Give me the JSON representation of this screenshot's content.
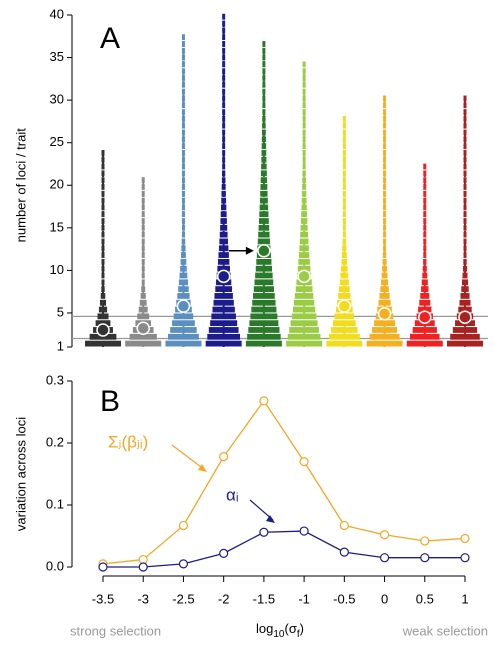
{
  "chart_data": [
    {
      "type": "violin",
      "panel_label": "A",
      "ylabel": "number of loci / trait",
      "categories": [
        -3.5,
        -3,
        -2.5,
        -2,
        -1.5,
        -1,
        -0.5,
        0,
        0.5,
        1
      ],
      "means": [
        3.0,
        3.2,
        5.8,
        9.3,
        12.3,
        9.3,
        5.8,
        4.9,
        4.5,
        4.5
      ],
      "max": [
        23.5,
        20.5,
        37.5,
        40,
        36.5,
        34.5,
        27.5,
        30.5,
        22.5,
        30
      ],
      "colors": [
        "#333333",
        "#8a8a8a",
        "#5b8fc2",
        "#1c1c8c",
        "#2b7a2b",
        "#9acd45",
        "#f2dc1e",
        "#f5b021",
        "#ee2222",
        "#a82222"
      ],
      "hlines": [
        2,
        4.6
      ],
      "ylim": [
        1,
        40
      ],
      "yticks": [
        1,
        5,
        10,
        15,
        20,
        25,
        30,
        35,
        40
      ]
    },
    {
      "type": "line",
      "panel_label": "B",
      "ylabel": "variation across loci",
      "xlabel": {
        "base": "log",
        "sub1": "10",
        "mid": "(σ",
        "sub2": "f",
        "end": ")"
      },
      "left_note": "strong selection",
      "right_note": "weak selection",
      "x": [
        -3.5,
        -3,
        -2.5,
        -2,
        -1.5,
        -1,
        -0.5,
        0,
        0.5,
        1
      ],
      "series": [
        {
          "name": "Σⱼ(βⱼᵢ)",
          "color": "#f5a623",
          "values": [
            0.005,
            0.012,
            0.067,
            0.178,
            0.268,
            0.17,
            0.067,
            0.052,
            0.042,
            0.046
          ]
        },
        {
          "name": "αᵢ",
          "color": "#1c1c8c",
          "values": [
            0.0,
            0.0,
            0.005,
            0.022,
            0.056,
            0.058,
            0.024,
            0.015,
            0.015,
            0.015
          ]
        }
      ],
      "xlim": [
        -3.5,
        1
      ],
      "xticks": [
        -3.5,
        -3,
        -2.5,
        -2,
        -1.5,
        -1,
        -0.5,
        0,
        0.5,
        1
      ],
      "ylim": [
        0,
        0.3
      ],
      "yticks": [
        {
          "value": 0,
          "label": "0.0"
        },
        0.1,
        0.2,
        0.3
      ]
    }
  ]
}
